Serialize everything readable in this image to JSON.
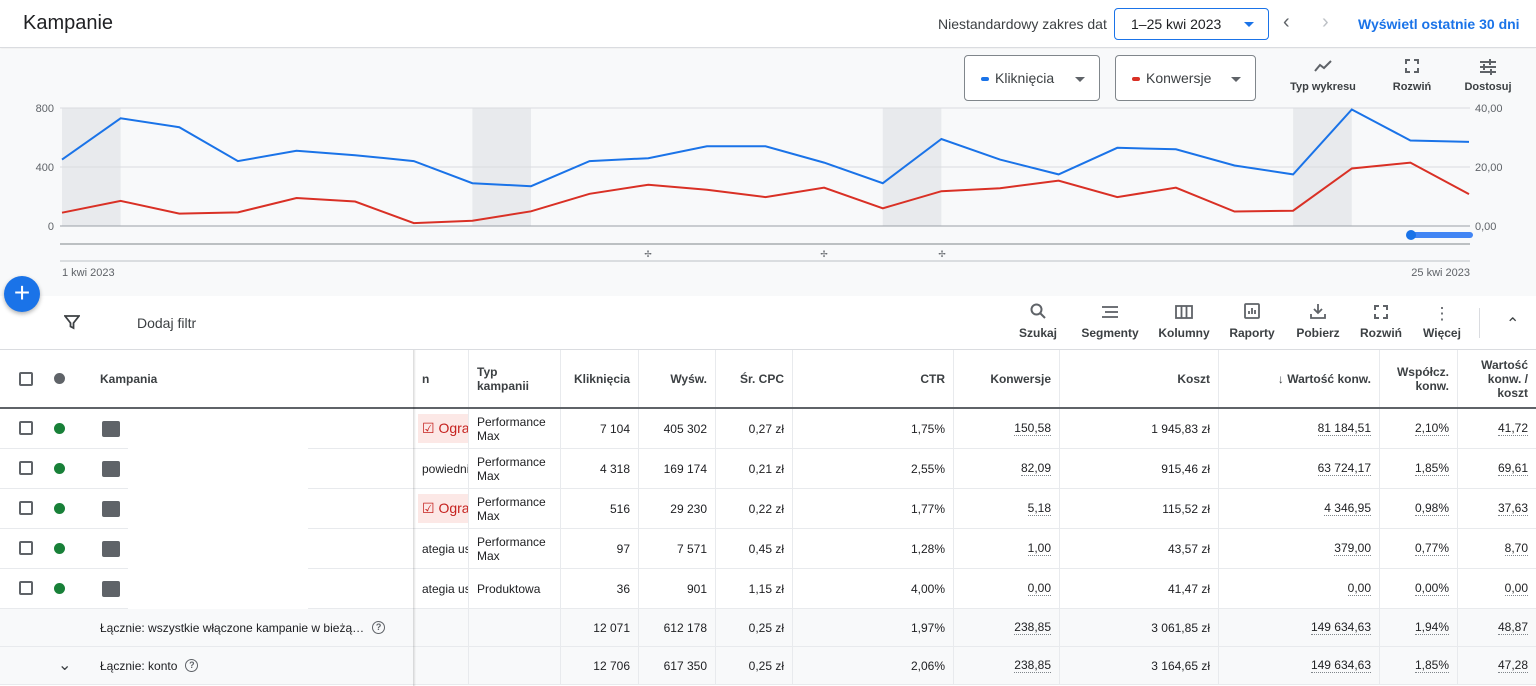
{
  "header": {
    "title": "Kampanie",
    "range_label": "Niestandardowy zakres dat",
    "range_value": "1–25 kwi 2023",
    "last30_link": "Wyświetl ostatnie 30 dni"
  },
  "chart_controls": {
    "metric1": "Kliknięcia",
    "metric1_color": "#1a73e8",
    "metric2": "Konwersje",
    "metric2_color": "#d93025",
    "tools": [
      {
        "label": "Typ wykresu",
        "icon": "line-chart-icon"
      },
      {
        "label": "Rozwiń",
        "icon": "expand-icon"
      },
      {
        "label": "Dostosuj",
        "icon": "tune-icon"
      }
    ]
  },
  "chart_data": {
    "type": "line",
    "x_start_label": "1 kwi 2023",
    "x_end_label": "25 kwi 2023",
    "x": [
      1,
      2,
      3,
      4,
      5,
      6,
      7,
      8,
      9,
      10,
      11,
      12,
      13,
      14,
      15,
      16,
      17,
      18,
      19,
      20,
      21,
      22,
      23,
      24,
      25
    ],
    "y_left_ticks": [
      "800",
      "400",
      "0"
    ],
    "y_right_ticks": [
      "40,00",
      "20,00",
      "0,00"
    ],
    "y_left_range": [
      0,
      800
    ],
    "y_right_range": [
      0,
      40
    ],
    "weekend_bands": [
      [
        1,
        2
      ],
      [
        8,
        9
      ],
      [
        15,
        16
      ],
      [
        22,
        23
      ]
    ],
    "series": [
      {
        "name": "Kliknięcia",
        "axis": "left",
        "color": "#1a73e8",
        "values": [
          450,
          730,
          670,
          440,
          510,
          480,
          440,
          290,
          270,
          440,
          460,
          540,
          540,
          430,
          290,
          590,
          450,
          350,
          530,
          520,
          410,
          350,
          790,
          580,
          570
        ]
      },
      {
        "name": "Konwersje",
        "axis": "right",
        "color": "#d93025",
        "values": [
          4.5,
          8.5,
          4.2,
          4.6,
          9.5,
          8.3,
          1.0,
          1.8,
          5.0,
          10.9,
          14.0,
          12.3,
          9.8,
          13.0,
          6.0,
          11.8,
          12.8,
          15.4,
          9.8,
          13.0,
          4.9,
          5.2,
          19.5,
          21.5,
          10.8
        ]
      }
    ]
  },
  "toolbar": {
    "add_filter": "Dodaj filtr",
    "tools": [
      {
        "label": "Szukaj",
        "icon": "search-icon"
      },
      {
        "label": "Segmenty",
        "icon": "segments-icon"
      },
      {
        "label": "Kolumny",
        "icon": "columns-icon"
      },
      {
        "label": "Raporty",
        "icon": "reports-icon"
      },
      {
        "label": "Pobierz",
        "icon": "download-icon"
      },
      {
        "label": "Rozwiń",
        "icon": "expand-icon"
      },
      {
        "label": "Więcej",
        "icon": "more-vert-icon"
      }
    ]
  },
  "table": {
    "headers": {
      "campaign": "Kampania",
      "status_partial": "n",
      "type": "Typ kampanii",
      "clicks": "Kliknięcia",
      "impr": "Wyśw.",
      "cpc": "Śr. CPC",
      "ctr": "CTR",
      "conv": "Konwersje",
      "cost": "Koszt",
      "conv_value": "↓ Wartość konw.",
      "conv_rate": "Współcz. konw.",
      "value_cost": "Wartość konw. / koszt"
    },
    "rows": [
      {
        "status": "Ogra",
        "status_limited": true,
        "type": "Performance Max",
        "clicks": "7 104",
        "impr": "405 302",
        "cpc": "0,27 zł",
        "ctr": "1,75%",
        "conv": "150,58",
        "cost": "1 945,83 zł",
        "conv_value": "81 184,51",
        "conv_rate": "2,10%",
        "value_cost": "41,72"
      },
      {
        "status": "powiedni:",
        "status_limited": false,
        "type": "Performance Max",
        "clicks": "4 318",
        "impr": "169 174",
        "cpc": "0,21 zł",
        "ctr": "2,55%",
        "conv": "82,09",
        "cost": "915,46 zł",
        "conv_value": "63 724,17",
        "conv_rate": "1,85%",
        "value_cost": "69,61"
      },
      {
        "status": "Ogra",
        "status_limited": true,
        "type": "Performance Max",
        "clicks": "516",
        "impr": "29 230",
        "cpc": "0,22 zł",
        "ctr": "1,77%",
        "conv": "5,18",
        "cost": "115,52 zł",
        "conv_value": "4 346,95",
        "conv_rate": "0,98%",
        "value_cost": "37,63"
      },
      {
        "status": "ategia ust",
        "status_limited": false,
        "type": "Performance Max",
        "clicks": "97",
        "impr": "7 571",
        "cpc": "0,45 zł",
        "ctr": "1,28%",
        "conv": "1,00",
        "cost": "43,57 zł",
        "conv_value": "379,00",
        "conv_rate": "0,77%",
        "value_cost": "8,70"
      },
      {
        "status": "ategia ust",
        "status_limited": false,
        "type": "Produktowa",
        "clicks": "36",
        "impr": "901",
        "cpc": "1,15 zł",
        "ctr": "4,00%",
        "conv": "0,00",
        "cost": "41,47 zł",
        "conv_value": "0,00",
        "conv_rate": "0,00%",
        "value_cost": "0,00"
      }
    ],
    "totals": [
      {
        "label": "Łącznie: wszystkie włączone kampanie w bieżą…",
        "clicks": "12 071",
        "impr": "612 178",
        "cpc": "0,25 zł",
        "ctr": "1,97%",
        "conv": "238,85",
        "cost": "3 061,85 zł",
        "conv_value": "149 634,63",
        "conv_rate": "1,94%",
        "value_cost": "48,87"
      },
      {
        "label": "Łącznie: konto",
        "clicks": "12 706",
        "impr": "617 350",
        "cpc": "0,25 zł",
        "ctr": "2,06%",
        "conv": "238,85",
        "cost": "3 164,65 zł",
        "conv_value": "149 634,63",
        "conv_rate": "1,85%",
        "value_cost": "47,28"
      }
    ]
  }
}
